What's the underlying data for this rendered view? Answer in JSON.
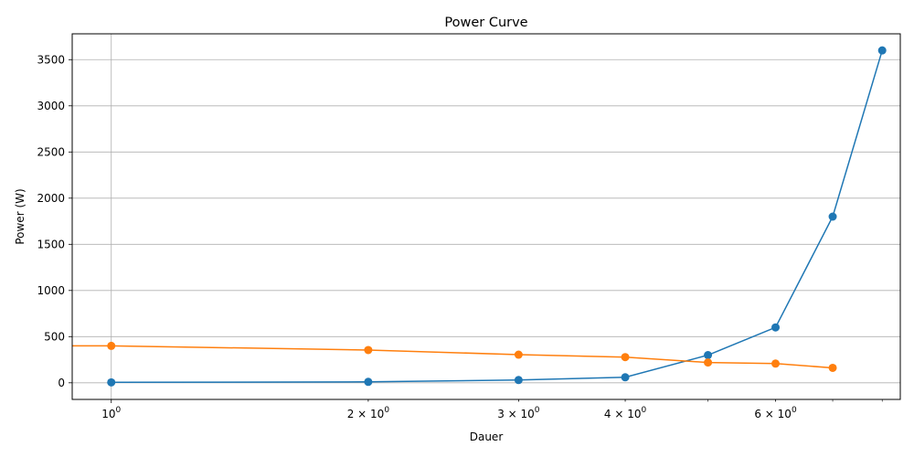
{
  "chart_data": {
    "type": "line",
    "title": "Power Curve",
    "xlabel": "Dauer",
    "ylabel": "Power (W)",
    "xscale": "log",
    "xlim": [
      0.9,
      8.4
    ],
    "ylim": [
      -180,
      3780
    ],
    "x_ticks": [
      {
        "value": 1,
        "base": "10",
        "exp": "0"
      },
      {
        "value": 2,
        "base": "2 × 10",
        "exp": "0"
      },
      {
        "value": 3,
        "base": "3 × 10",
        "exp": "0"
      },
      {
        "value": 4,
        "base": "4 × 10",
        "exp": "0"
      },
      {
        "value": 6,
        "base": "6 × 10",
        "exp": "0"
      }
    ],
    "x_minor_ticks": [
      5,
      7,
      8
    ],
    "y_ticks": [
      0,
      500,
      1000,
      1500,
      2000,
      2500,
      3000,
      3500
    ],
    "grid": true,
    "series": [
      {
        "color": "#1f77b4",
        "points": [
          [
            1,
            5
          ],
          [
            2,
            10
          ],
          [
            3,
            30
          ],
          [
            4,
            60
          ],
          [
            5,
            300
          ],
          [
            6,
            600
          ],
          [
            7,
            1800
          ],
          [
            8,
            3600
          ]
        ]
      },
      {
        "color": "#ff7f0e",
        "points": [
          [
            0.9,
            400
          ],
          [
            1,
            400
          ],
          [
            2,
            355
          ],
          [
            3,
            305
          ],
          [
            4,
            278
          ],
          [
            5,
            220
          ],
          [
            6,
            208
          ],
          [
            7,
            162
          ]
        ]
      }
    ]
  }
}
